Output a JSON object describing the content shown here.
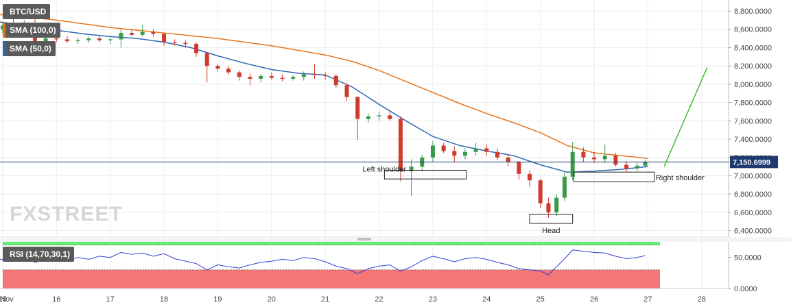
{
  "chart_data": {
    "type": "candlestick",
    "title": "BTC/USD",
    "price_axis": {
      "ticks": [
        6400,
        6600,
        6800,
        7000,
        7200,
        7400,
        7600,
        7800,
        8000,
        8200,
        8400,
        8600,
        8800
      ],
      "tick_labels": [
        "6,400.0000",
        "6,600.0000",
        "6,800.0000",
        "7,000.0000",
        "7,200.0000",
        "7,400.0000",
        "7,600.0000",
        "7,800.0000",
        "8,000.0000",
        "8,200.0000",
        "8,400.0000",
        "8,600.0000",
        "8,800.0000"
      ],
      "range": [
        6330,
        8920
      ]
    },
    "x_axis": {
      "labels": [
        "Nov",
        "15",
        "16",
        "17",
        "18",
        "19",
        "20",
        "21",
        "22",
        "23",
        "24",
        "25",
        "26",
        "27",
        "28"
      ],
      "values": [
        14.92,
        15,
        16,
        17,
        18,
        19,
        20,
        21,
        22,
        23,
        24,
        25,
        26,
        27,
        28
      ],
      "range": [
        14.95,
        28.5
      ]
    },
    "current_price": {
      "value": 7150.6999,
      "label": "7,150.6999"
    },
    "legend": [
      {
        "name": "BTC/USD",
        "color": "#555555"
      },
      {
        "name": "SMA (100,0)",
        "color": "#e8741b"
      },
      {
        "name": "SMA (50,0)",
        "color": "#2c67b5"
      }
    ],
    "sma100": [
      [
        14.95,
        8760
      ],
      [
        15.5,
        8730
      ],
      [
        16,
        8700
      ],
      [
        16.5,
        8660
      ],
      [
        17,
        8620
      ],
      [
        17.5,
        8590
      ],
      [
        18,
        8560
      ],
      [
        18.5,
        8530
      ],
      [
        19,
        8500
      ],
      [
        19.5,
        8460
      ],
      [
        20,
        8420
      ],
      [
        20.5,
        8370
      ],
      [
        21,
        8320
      ],
      [
        21.5,
        8250
      ],
      [
        22,
        8150
      ],
      [
        22.5,
        8030
      ],
      [
        23,
        7910
      ],
      [
        23.5,
        7790
      ],
      [
        24,
        7680
      ],
      [
        24.5,
        7580
      ],
      [
        25,
        7470
      ],
      [
        25.5,
        7330
      ],
      [
        26,
        7250
      ],
      [
        26.5,
        7220
      ],
      [
        27,
        7190
      ]
    ],
    "sma50": [
      [
        14.95,
        8680
      ],
      [
        15.5,
        8640
      ],
      [
        16,
        8590
      ],
      [
        16.5,
        8550
      ],
      [
        17,
        8520
      ],
      [
        17.5,
        8500
      ],
      [
        18,
        8460
      ],
      [
        18.5,
        8400
      ],
      [
        19,
        8310
      ],
      [
        19.5,
        8230
      ],
      [
        20,
        8160
      ],
      [
        20.5,
        8120
      ],
      [
        21,
        8100
      ],
      [
        21.5,
        7970
      ],
      [
        22,
        7780
      ],
      [
        22.5,
        7600
      ],
      [
        23,
        7430
      ],
      [
        23.5,
        7330
      ],
      [
        24,
        7270
      ],
      [
        24.5,
        7220
      ],
      [
        25,
        7120
      ],
      [
        25.5,
        7040
      ],
      [
        26,
        7050
      ],
      [
        26.5,
        7070
      ],
      [
        27,
        7100
      ]
    ],
    "candles": [
      [
        15.0,
        8600,
        8680,
        8560,
        8640
      ],
      [
        15.2,
        8640,
        8720,
        8590,
        8620
      ],
      [
        15.4,
        8620,
        8700,
        8580,
        8660
      ],
      [
        15.6,
        8660,
        8720,
        8420,
        8470
      ],
      [
        15.8,
        8470,
        8520,
        8430,
        8500
      ],
      [
        16.0,
        8500,
        8530,
        8460,
        8490
      ],
      [
        16.2,
        8490,
        8530,
        8450,
        8470
      ],
      [
        16.4,
        8470,
        8510,
        8440,
        8480
      ],
      [
        16.6,
        8480,
        8520,
        8450,
        8500
      ],
      [
        16.8,
        8500,
        8530,
        8460,
        8480
      ],
      [
        17.0,
        8480,
        8510,
        8440,
        8490
      ],
      [
        17.2,
        8490,
        8600,
        8400,
        8560
      ],
      [
        17.4,
        8560,
        8600,
        8520,
        8540
      ],
      [
        17.6,
        8540,
        8650,
        8520,
        8570
      ],
      [
        17.8,
        8570,
        8600,
        8520,
        8550
      ],
      [
        18.0,
        8550,
        8560,
        8420,
        8460
      ],
      [
        18.2,
        8460,
        8490,
        8420,
        8450
      ],
      [
        18.4,
        8450,
        8480,
        8400,
        8440
      ],
      [
        18.6,
        8440,
        8460,
        8300,
        8340
      ],
      [
        18.8,
        8340,
        8350,
        8020,
        8200
      ],
      [
        19.0,
        8200,
        8220,
        8140,
        8170
      ],
      [
        19.2,
        8170,
        8200,
        8100,
        8130
      ],
      [
        19.4,
        8130,
        8150,
        8040,
        8080
      ],
      [
        19.6,
        8080,
        8120,
        7990,
        8060
      ],
      [
        19.8,
        8060,
        8110,
        8020,
        8090
      ],
      [
        20.0,
        8090,
        8130,
        8050,
        8070
      ],
      [
        20.2,
        8070,
        8110,
        8030,
        8060
      ],
      [
        20.4,
        8060,
        8100,
        8040,
        8080
      ],
      [
        20.6,
        8080,
        8140,
        8040,
        8110
      ],
      [
        20.8,
        8110,
        8220,
        8060,
        8100
      ],
      [
        21.0,
        8100,
        8130,
        8050,
        8090
      ],
      [
        21.2,
        8090,
        8110,
        7960,
        7990
      ],
      [
        21.4,
        7990,
        8010,
        7820,
        7860
      ],
      [
        21.6,
        7860,
        7870,
        7390,
        7620
      ],
      [
        21.8,
        7620,
        7680,
        7580,
        7650
      ],
      [
        22.0,
        7650,
        7700,
        7600,
        7660
      ],
      [
        22.2,
        7660,
        7720,
        7600,
        7620
      ],
      [
        22.4,
        7620,
        7650,
        6940,
        7050
      ],
      [
        22.6,
        7050,
        7180,
        6780,
        7100
      ],
      [
        22.8,
        7100,
        7230,
        7050,
        7200
      ],
      [
        23.0,
        7200,
        7380,
        7150,
        7330
      ],
      [
        23.2,
        7330,
        7360,
        7250,
        7270
      ],
      [
        23.4,
        7270,
        7320,
        7150,
        7220
      ],
      [
        23.6,
        7220,
        7300,
        7180,
        7260
      ],
      [
        23.8,
        7260,
        7360,
        7220,
        7300
      ],
      [
        24.0,
        7300,
        7340,
        7220,
        7260
      ],
      [
        24.2,
        7260,
        7300,
        7170,
        7200
      ],
      [
        24.4,
        7200,
        7230,
        7100,
        7150
      ],
      [
        24.6,
        7150,
        7160,
        6960,
        7020
      ],
      [
        24.8,
        7020,
        7060,
        6880,
        6950
      ],
      [
        25.0,
        6950,
        6970,
        6650,
        6700
      ],
      [
        25.15,
        6700,
        6760,
        6540,
        6600
      ],
      [
        25.3,
        6600,
        6800,
        6560,
        6760
      ],
      [
        25.45,
        6760,
        7050,
        6720,
        6990
      ],
      [
        25.6,
        6990,
        7370,
        6950,
        7260
      ],
      [
        25.8,
        7260,
        7310,
        7150,
        7200
      ],
      [
        26.0,
        7200,
        7260,
        7140,
        7180
      ],
      [
        26.2,
        7180,
        7340,
        7140,
        7220
      ],
      [
        26.4,
        7220,
        7250,
        7100,
        7120
      ],
      [
        26.6,
        7120,
        7160,
        7040,
        7080
      ],
      [
        26.8,
        7080,
        7140,
        7050,
        7110
      ],
      [
        26.95,
        7110,
        7180,
        7090,
        7150
      ]
    ],
    "projection": [
      [
        27.3,
        7100
      ],
      [
        28.1,
        8180
      ]
    ],
    "annotations": [
      {
        "text": "Left shoulder",
        "x_left": 22.1,
        "x_right": 23.62,
        "y_top": 7060,
        "y_bottom": 6965
      },
      {
        "text": "Head",
        "x_left": 24.8,
        "x_right": 25.6,
        "y_top": 6580,
        "y_bottom": 6480
      },
      {
        "text": "Right shoulder",
        "x_left": 25.62,
        "x_right": 27.12,
        "y_top": 7040,
        "y_bottom": 6935
      }
    ],
    "rsi": {
      "name": "RSI (14,70,30,1)",
      "range": [
        0,
        75
      ],
      "ticks": [
        0,
        50
      ],
      "tick_labels": [
        "0.0000",
        "50.0000"
      ],
      "overbought": 70,
      "oversold": 30,
      "values": [
        [
          14.95,
          47
        ],
        [
          15.2,
          45
        ],
        [
          15.4,
          50
        ],
        [
          15.6,
          42
        ],
        [
          15.8,
          46
        ],
        [
          16.0,
          48
        ],
        [
          16.2,
          45
        ],
        [
          16.4,
          50
        ],
        [
          16.6,
          47
        ],
        [
          16.8,
          52
        ],
        [
          17.0,
          50
        ],
        [
          17.2,
          58
        ],
        [
          17.4,
          55
        ],
        [
          17.6,
          57
        ],
        [
          17.8,
          52
        ],
        [
          18.0,
          56
        ],
        [
          18.2,
          48
        ],
        [
          18.4,
          44
        ],
        [
          18.6,
          40
        ],
        [
          18.8,
          30
        ],
        [
          19.0,
          38
        ],
        [
          19.2,
          35
        ],
        [
          19.4,
          33
        ],
        [
          19.6,
          38
        ],
        [
          19.8,
          42
        ],
        [
          20.0,
          44
        ],
        [
          20.2,
          47
        ],
        [
          20.4,
          45
        ],
        [
          20.6,
          50
        ],
        [
          20.8,
          48
        ],
        [
          21.0,
          43
        ],
        [
          21.2,
          36
        ],
        [
          21.4,
          32
        ],
        [
          21.6,
          24
        ],
        [
          21.8,
          32
        ],
        [
          22.0,
          36
        ],
        [
          22.2,
          38
        ],
        [
          22.4,
          28
        ],
        [
          22.6,
          35
        ],
        [
          22.8,
          45
        ],
        [
          23.0,
          52
        ],
        [
          23.2,
          48
        ],
        [
          23.4,
          43
        ],
        [
          23.6,
          48
        ],
        [
          23.8,
          50
        ],
        [
          24.0,
          47
        ],
        [
          24.2,
          42
        ],
        [
          24.4,
          38
        ],
        [
          24.6,
          32
        ],
        [
          24.8,
          30
        ],
        [
          25.0,
          28
        ],
        [
          25.15,
          22
        ],
        [
          25.3,
          35
        ],
        [
          25.45,
          48
        ],
        [
          25.6,
          62
        ],
        [
          25.8,
          60
        ],
        [
          26.0,
          58
        ],
        [
          26.2,
          57
        ],
        [
          26.4,
          52
        ],
        [
          26.6,
          48
        ],
        [
          26.8,
          50
        ],
        [
          26.95,
          53
        ]
      ]
    }
  },
  "watermark": "FXSTREET"
}
